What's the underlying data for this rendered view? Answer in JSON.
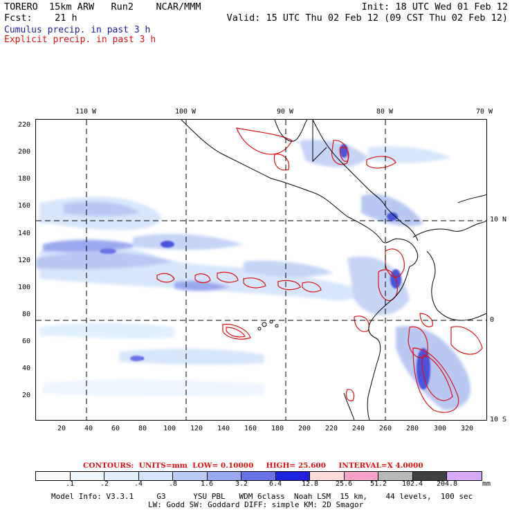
{
  "header": {
    "model_name": "TORERO",
    "resolution": "15km ARW",
    "run": "Run2",
    "org": "NCAR/MMM",
    "init_text": "Init: 18 UTC Wed 01 Feb 12",
    "fcst_label": "Fcst:",
    "fcst_value": "21 h",
    "valid_text": "Valid: 15 UTC Thu 02 Feb 12 (09 CST Thu 02 Feb 12)",
    "legend_cumulus": "Cumulus precip. in past 3 h",
    "legend_explicit": "Explicit precip. in past 3 h",
    "colors": {
      "cumulus": "#1a1aa0",
      "explicit": "#e01010"
    }
  },
  "map": {
    "top_ticks": [
      "110 W",
      "100 W",
      "90 W",
      "80 W",
      "70 W"
    ],
    "right_ticks": [
      "10 N",
      "0",
      "10 S"
    ],
    "left_ticks": [
      "220",
      "200",
      "180",
      "160",
      "140",
      "120",
      "100",
      "80",
      "60",
      "40",
      "20"
    ],
    "bottom_ticks": [
      "20",
      "40",
      "60",
      "80",
      "100",
      "120",
      "140",
      "160",
      "180",
      "200",
      "220",
      "240",
      "260",
      "280",
      "300",
      "320"
    ],
    "grid_style": "dashed"
  },
  "contours": {
    "label": "CONTOURS:",
    "units": "UNITS=mm",
    "low": "LOW= 0.10000",
    "high": "HIGH= 25.600",
    "interval": "INTERVAL=X 4.0000"
  },
  "colorbar": {
    "labels": [
      ".1",
      ".2",
      ".4",
      ".8",
      "1.6",
      "3.2",
      "6.4",
      "12.8",
      "25.6",
      "51.2",
      "102.4",
      "204.8"
    ],
    "unit": "mm",
    "colors": [
      "#ffffff",
      "#f0f8ff",
      "#e2efff",
      "#d0e4fb",
      "#b8ccf5",
      "#9aa8ee",
      "#6a72e6",
      "#2020e0",
      "#ffd8d8",
      "#f5a0c8",
      "#b8b8b8",
      "#404040",
      "#d8a8f8"
    ]
  },
  "model_info": {
    "line1": "Model Info: V3.3.1     G3      YSU PBL   WDM 6class  Noah LSM  15 km,    44 levels,  100 sec",
    "line2": "LW: Godd SW: Goddard DIFF: simple KM: 2D Smagor"
  }
}
